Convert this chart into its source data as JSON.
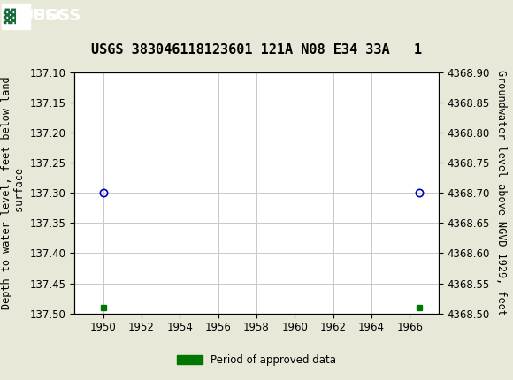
{
  "title": "USGS 383046118123601 121A N08 E34 33A   1",
  "ylabel_left": "Depth to water level, feet below land\n surface",
  "ylabel_right": "Groundwater level above NGVD 1929, feet",
  "ylim_left": [
    137.1,
    137.5
  ],
  "ylim_right_top": 4368.9,
  "ylim_right_bottom": 4368.5,
  "xlim": [
    1948.5,
    1967.5
  ],
  "xticks": [
    1950,
    1952,
    1954,
    1956,
    1958,
    1960,
    1962,
    1964,
    1966
  ],
  "yticks_left": [
    137.1,
    137.15,
    137.2,
    137.25,
    137.3,
    137.35,
    137.4,
    137.45,
    137.5
  ],
  "yticks_right": [
    4368.9,
    4368.85,
    4368.8,
    4368.75,
    4368.7,
    4368.65,
    4368.6,
    4368.55,
    4368.5
  ],
  "circle_points_x": [
    1950.0,
    1966.5
  ],
  "circle_points_y": [
    137.3,
    137.3
  ],
  "square_points_x": [
    1950.0,
    1966.5
  ],
  "square_points_y": [
    137.49,
    137.49
  ],
  "header_color": "#1a6b3c",
  "bg_color": "#e8e8d8",
  "plot_bg_color": "#ffffff",
  "grid_color": "#c8c8c8",
  "circle_color": "#0000bb",
  "square_color": "#007700",
  "legend_label": "Period of approved data",
  "title_fontsize": 11,
  "tick_fontsize": 8.5,
  "label_fontsize": 8.5
}
